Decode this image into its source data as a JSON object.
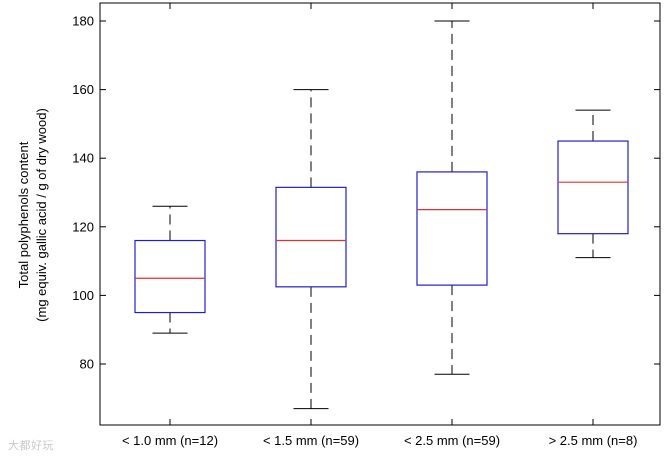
{
  "chart_data": {
    "type": "boxplot",
    "title": "",
    "xlabel": "",
    "ylabel_line1": "Total polyphenols content",
    "ylabel_line2": "(mg equiv. gallic acid / g of dry wood)",
    "ylim": [
      60,
      185
    ],
    "yticks": [
      80,
      100,
      120,
      140,
      160,
      180
    ],
    "grid": false,
    "colors": {
      "box": "#2020c8",
      "median": "#e03030",
      "whisker": "#000000"
    },
    "categories": [
      "< 1.0 mm (n=12)",
      "< 1.5 mm (n=59)",
      "< 2.5 mm (n=59)",
      "> 2.5 mm (n=8)"
    ],
    "boxes": [
      {
        "min": 89,
        "q1": 95,
        "median": 105,
        "q3": 116,
        "max": 126
      },
      {
        "min": 67,
        "q1": 102.5,
        "median": 116,
        "q3": 131.5,
        "max": 160
      },
      {
        "min": 77,
        "q1": 103,
        "median": 125,
        "q3": 136,
        "max": 180
      },
      {
        "min": 111,
        "q1": 118,
        "median": 133,
        "q3": 145,
        "max": 154
      }
    ]
  },
  "watermark": "大都好玩"
}
